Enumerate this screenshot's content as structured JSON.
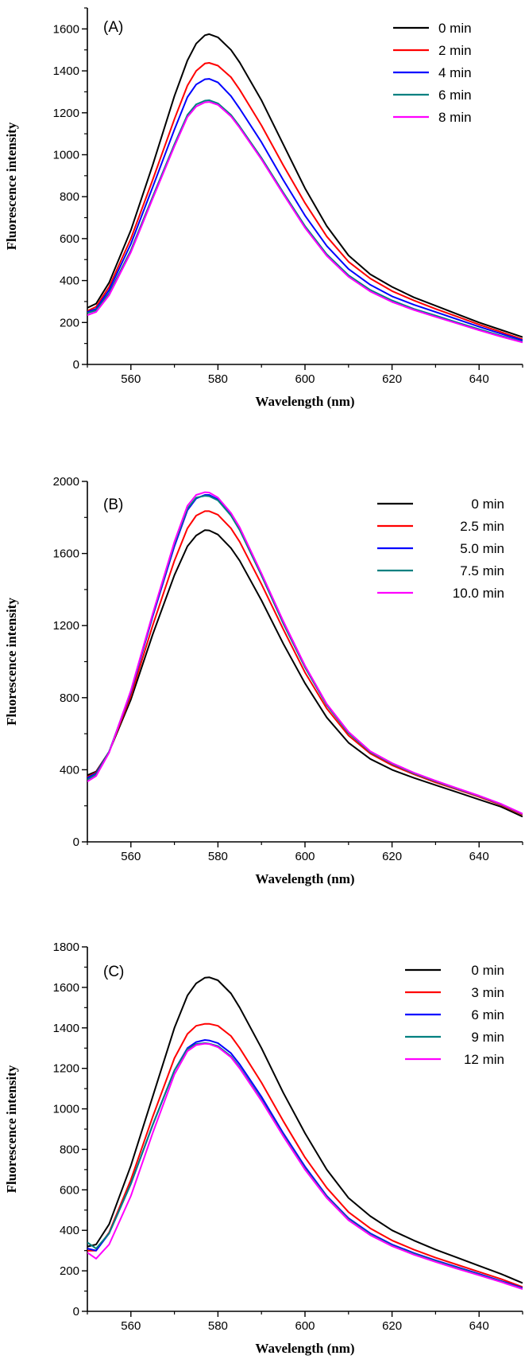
{
  "chart_data": [
    {
      "type": "line",
      "panel": "(A)",
      "xlabel": "Wavelength (nm)",
      "ylabel": "Fluorescence intensity",
      "xlim": [
        550,
        650
      ],
      "ylim": [
        0,
        1700
      ],
      "xticks": [
        560,
        580,
        600,
        620,
        640
      ],
      "yticks": [
        0,
        200,
        400,
        600,
        800,
        1000,
        1200,
        1400,
        1600
      ],
      "legend_position": "top-right",
      "legend_align": "left",
      "x": [
        550,
        552,
        555,
        560,
        565,
        570,
        573,
        575,
        577,
        578,
        580,
        583,
        585,
        590,
        595,
        600,
        605,
        610,
        615,
        620,
        625,
        630,
        635,
        640,
        645,
        650
      ],
      "series": [
        {
          "name": "0 min",
          "color": "#000000",
          "values": [
            270,
            290,
            390,
            640,
            950,
            1280,
            1450,
            1530,
            1570,
            1575,
            1560,
            1500,
            1440,
            1260,
            1050,
            840,
            660,
            520,
            430,
            370,
            320,
            280,
            240,
            200,
            165,
            130
          ]
        },
        {
          "name": "2 min",
          "color": "#ff0000",
          "values": [
            255,
            275,
            370,
            600,
            880,
            1170,
            1330,
            1400,
            1435,
            1438,
            1425,
            1370,
            1310,
            1140,
            950,
            770,
            610,
            490,
            410,
            350,
            305,
            265,
            228,
            190,
            155,
            120
          ]
        },
        {
          "name": "4 min",
          "color": "#0000ff",
          "values": [
            250,
            265,
            355,
            575,
            845,
            1120,
            1275,
            1335,
            1360,
            1362,
            1345,
            1280,
            1220,
            1060,
            880,
            710,
            565,
            455,
            380,
            325,
            285,
            250,
            215,
            180,
            147,
            115
          ]
        },
        {
          "name": "6 min",
          "color": "#008080",
          "values": [
            245,
            258,
            340,
            545,
            800,
            1050,
            1190,
            1240,
            1258,
            1260,
            1245,
            1190,
            1135,
            985,
            820,
            660,
            525,
            425,
            355,
            305,
            265,
            233,
            200,
            168,
            137,
            108
          ]
        },
        {
          "name": "8 min",
          "color": "#ff00ff",
          "values": [
            235,
            250,
            330,
            535,
            790,
            1040,
            1180,
            1230,
            1250,
            1252,
            1238,
            1183,
            1128,
            978,
            813,
            652,
            518,
            418,
            348,
            298,
            260,
            227,
            195,
            163,
            133,
            105
          ]
        }
      ]
    },
    {
      "type": "line",
      "panel": "(B)",
      "xlabel": "Wavelength (nm)",
      "ylabel": "Fluorescence intensity",
      "xlim": [
        550,
        650
      ],
      "ylim": [
        0,
        2000
      ],
      "xticks": [
        560,
        580,
        600,
        620,
        640
      ],
      "yticks": [
        0,
        400,
        800,
        1200,
        1600,
        2000
      ],
      "legend_position": "top-right",
      "legend_align": "right",
      "x": [
        550,
        552,
        555,
        560,
        565,
        570,
        573,
        575,
        577,
        578,
        580,
        583,
        585,
        590,
        595,
        600,
        605,
        610,
        615,
        620,
        625,
        630,
        635,
        640,
        645,
        650
      ],
      "series": [
        {
          "name": "0 min",
          "color": "#000000",
          "values": [
            370,
            390,
            500,
            790,
            1150,
            1480,
            1640,
            1700,
            1730,
            1728,
            1705,
            1630,
            1560,
            1340,
            1100,
            880,
            690,
            550,
            460,
            400,
            355,
            315,
            275,
            235,
            195,
            140
          ]
        },
        {
          "name": "2.5 min",
          "color": "#ff0000",
          "values": [
            360,
            385,
            500,
            810,
            1200,
            1560,
            1740,
            1810,
            1835,
            1835,
            1815,
            1740,
            1665,
            1430,
            1180,
            940,
            740,
            590,
            490,
            425,
            375,
            330,
            290,
            250,
            205,
            150
          ]
        },
        {
          "name": "5.0 min",
          "color": "#0000ff",
          "values": [
            355,
            380,
            500,
            830,
            1250,
            1640,
            1840,
            1905,
            1925,
            1925,
            1900,
            1815,
            1735,
            1480,
            1215,
            970,
            760,
            605,
            500,
            435,
            382,
            338,
            295,
            255,
            210,
            155
          ]
        },
        {
          "name": "7.5 min",
          "color": "#008080",
          "values": [
            345,
            375,
            500,
            835,
            1260,
            1655,
            1850,
            1910,
            1920,
            1918,
            1895,
            1810,
            1730,
            1478,
            1212,
            968,
            758,
            603,
            498,
            433,
            380,
            336,
            294,
            254,
            209,
            154
          ]
        },
        {
          "name": "10.0 min",
          "color": "#ff00ff",
          "values": [
            335,
            365,
            495,
            840,
            1265,
            1665,
            1865,
            1925,
            1940,
            1938,
            1910,
            1825,
            1745,
            1490,
            1225,
            978,
            765,
            610,
            503,
            437,
            384,
            339,
            297,
            256,
            211,
            156
          ]
        }
      ]
    },
    {
      "type": "line",
      "panel": "(C)",
      "xlabel": "Wavelength (nm)",
      "ylabel": "Fluorescence intensity",
      "xlim": [
        550,
        650
      ],
      "ylim": [
        0,
        1800
      ],
      "xticks": [
        560,
        580,
        600,
        620,
        640
      ],
      "yticks": [
        0,
        200,
        400,
        600,
        800,
        1000,
        1200,
        1400,
        1600,
        1800
      ],
      "legend_position": "top-right",
      "legend_align": "right",
      "x": [
        550,
        552,
        555,
        560,
        565,
        570,
        573,
        575,
        577,
        578,
        580,
        583,
        585,
        590,
        595,
        600,
        605,
        610,
        615,
        620,
        625,
        630,
        635,
        640,
        645,
        650
      ],
      "series": [
        {
          "name": "0 min",
          "color": "#000000",
          "values": [
            320,
            330,
            430,
            720,
            1060,
            1400,
            1560,
            1620,
            1648,
            1650,
            1635,
            1570,
            1500,
            1300,
            1080,
            880,
            700,
            560,
            470,
            400,
            350,
            305,
            265,
            225,
            185,
            140
          ]
        },
        {
          "name": "3 min",
          "color": "#ff0000",
          "values": [
            300,
            300,
            390,
            650,
            960,
            1250,
            1370,
            1410,
            1420,
            1420,
            1410,
            1360,
            1300,
            1130,
            940,
            760,
            610,
            490,
            410,
            350,
            305,
            265,
            230,
            195,
            160,
            120
          ]
        },
        {
          "name": "6 min",
          "color": "#0000ff",
          "values": [
            310,
            300,
            385,
            630,
            920,
            1190,
            1300,
            1330,
            1340,
            1338,
            1325,
            1275,
            1220,
            1060,
            880,
            715,
            570,
            460,
            385,
            330,
            288,
            252,
            218,
            185,
            150,
            115
          ]
        },
        {
          "name": "9 min",
          "color": "#008080",
          "values": [
            340,
            310,
            385,
            630,
            920,
            1190,
            1295,
            1320,
            1325,
            1322,
            1310,
            1260,
            1205,
            1045,
            870,
            705,
            565,
            455,
            380,
            325,
            284,
            248,
            214,
            181,
            147,
            112
          ]
        },
        {
          "name": "12 min",
          "color": "#ff00ff",
          "values": [
            290,
            260,
            330,
            570,
            880,
            1170,
            1285,
            1315,
            1322,
            1320,
            1305,
            1255,
            1200,
            1040,
            865,
            700,
            560,
            450,
            376,
            322,
            280,
            244,
            210,
            178,
            145,
            110
          ]
        }
      ]
    }
  ]
}
